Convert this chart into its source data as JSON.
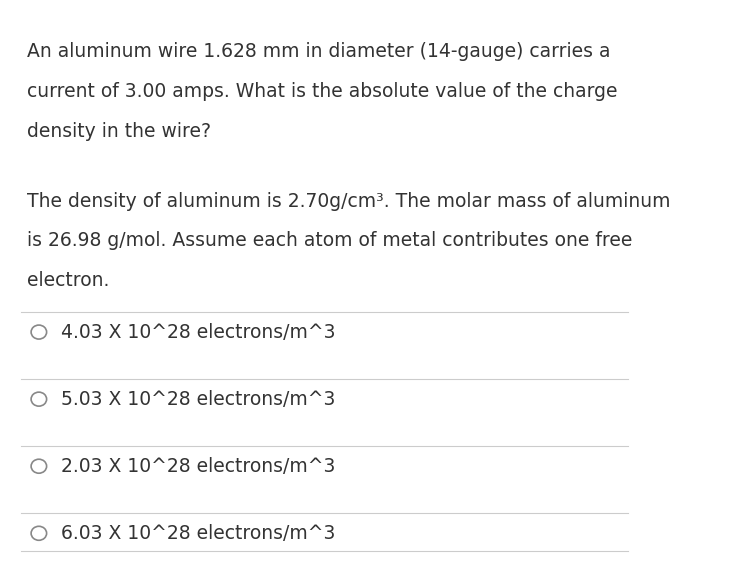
{
  "background_color": "#ffffff",
  "text_color": "#333333",
  "line_color": "#cccccc",
  "question_line1": "An aluminum wire 1.628 mm in diameter (14-gauge) carries a",
  "question_line2": "current of 3.00 amps. What is the absolute value of the charge",
  "question_line3": "density in the wire?",
  "hint_line1": "The density of aluminum is 2.70g/cm³. The molar mass of aluminum",
  "hint_line2": "is 26.98 g/mol. Assume each atom of metal contributes one free",
  "hint_line3": "electron.",
  "choices": [
    "4.03 X 10^28 electrons/m^3",
    "5.03 X 10^28 electrons/m^3",
    "2.03 X 10^28 electrons/m^3",
    "6.03 X 10^28 electrons/m^3"
  ],
  "font_size_question": 13.5,
  "font_size_hint": 13.5,
  "font_size_choice": 13.5
}
